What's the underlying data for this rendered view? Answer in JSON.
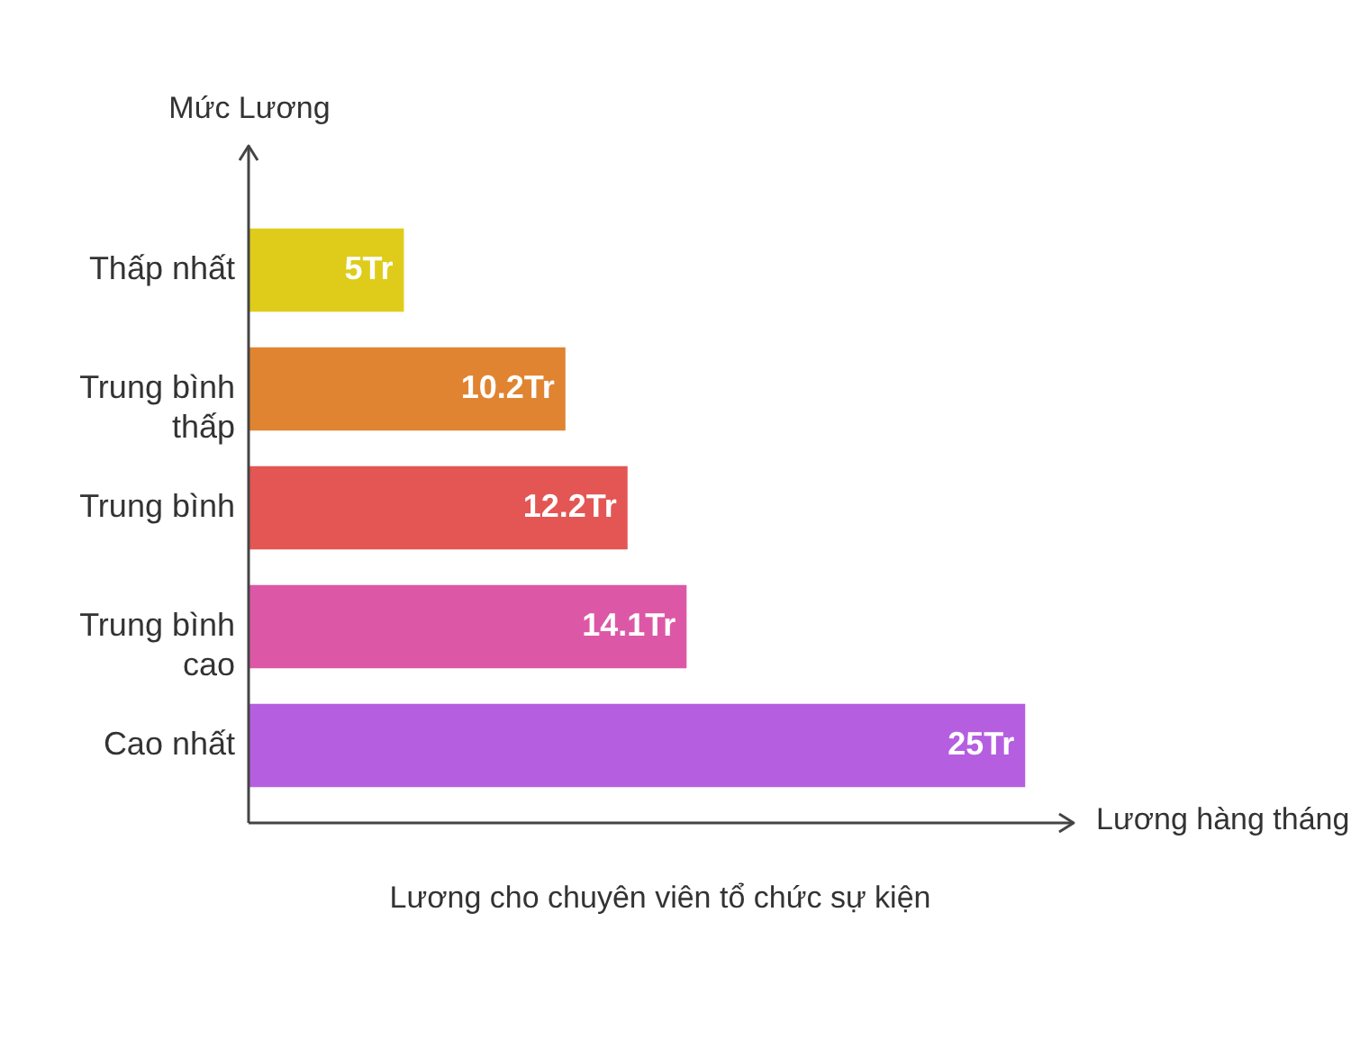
{
  "chart_data": {
    "type": "bar",
    "orientation": "horizontal",
    "title": "Lương cho chuyên viên tổ chức sự kiện",
    "xlabel": "Lương hàng tháng",
    "ylabel": "Mức Lương",
    "categories": [
      "Thấp nhất",
      "Trung bình thấp",
      "Trung bình",
      "Trung bình cao",
      "Cao nhất"
    ],
    "values": [
      5,
      10.2,
      12.2,
      14.1,
      25
    ],
    "colors": [
      "#dfcc1a",
      "#e08431",
      "#e35654",
      "#dc58a6",
      "#b55ee0"
    ],
    "value_labels": [
      "5Tr",
      "10.2Tr",
      "12.2Tr",
      "14.1Tr",
      "25Tr"
    ],
    "xlim": [
      0,
      26.5
    ],
    "tick_labels": "y"
  }
}
